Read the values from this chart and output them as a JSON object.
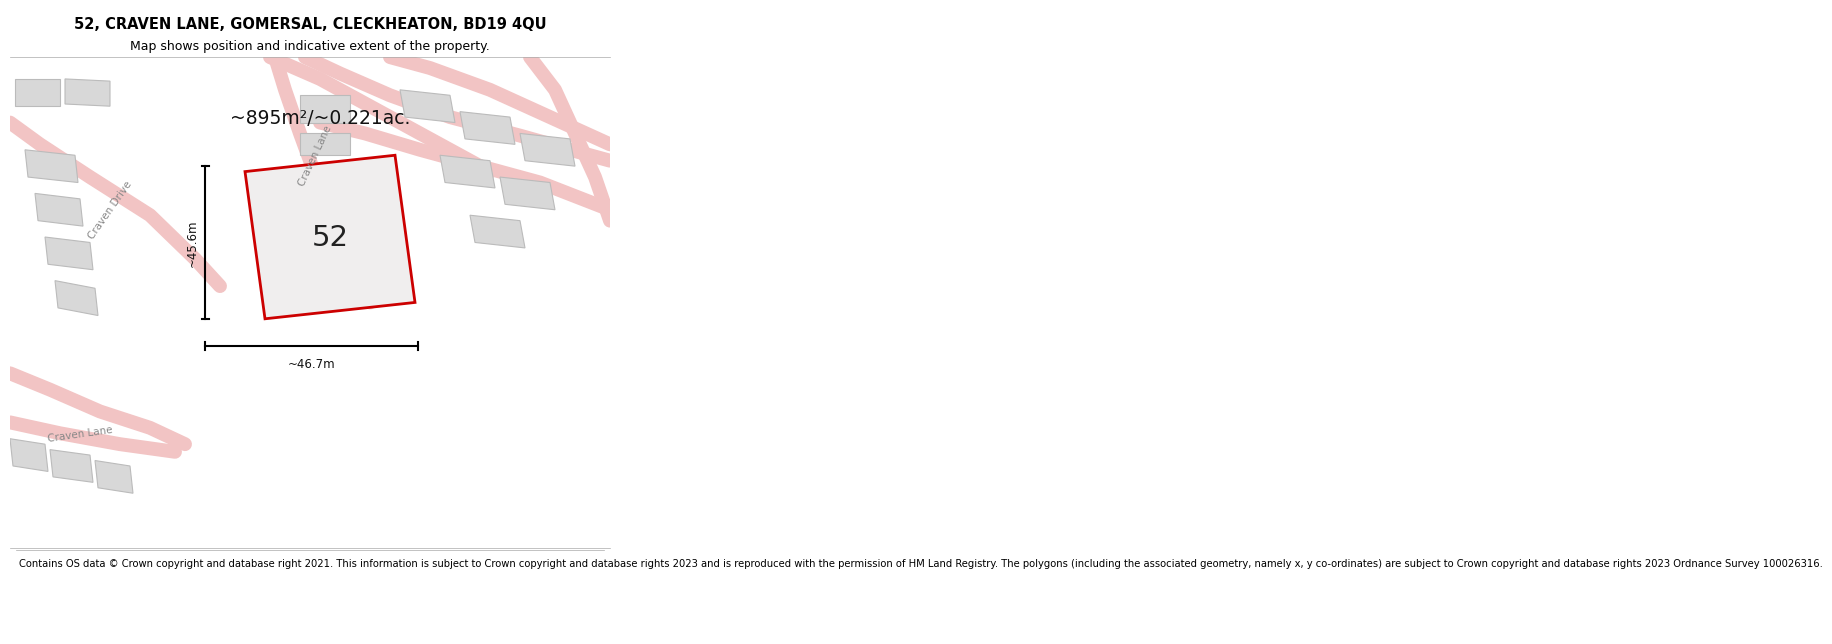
{
  "title": "52, CRAVEN LANE, GOMERSAL, CLECKHEATON, BD19 4QU",
  "subtitle": "Map shows position and indicative extent of the property.",
  "footer": "Contains OS data © Crown copyright and database right 2021. This information is subject to Crown copyright and database rights 2023 and is reproduced with the permission of HM Land Registry. The polygons (including the associated geometry, namely x, y co-ordinates) are subject to Crown copyright and database rights 2023 Ordnance Survey 100026316.",
  "area_label": "~895m²/~0.221ac.",
  "plot_number": "52",
  "dim_width": "~46.7m",
  "dim_height": "~45.6m",
  "map_bg": "#f7f3f3",
  "road_color": "#f2c4c4",
  "building_fill": "#d8d8d8",
  "building_edge": "#bbbbbb",
  "red_outline": "#cc0000",
  "title_fontsize": 10.5,
  "subtitle_fontsize": 9,
  "footer_fontsize": 7.2,
  "label_color": "#888888",
  "road_lw": 1.0,
  "white_bg": "#ffffff"
}
